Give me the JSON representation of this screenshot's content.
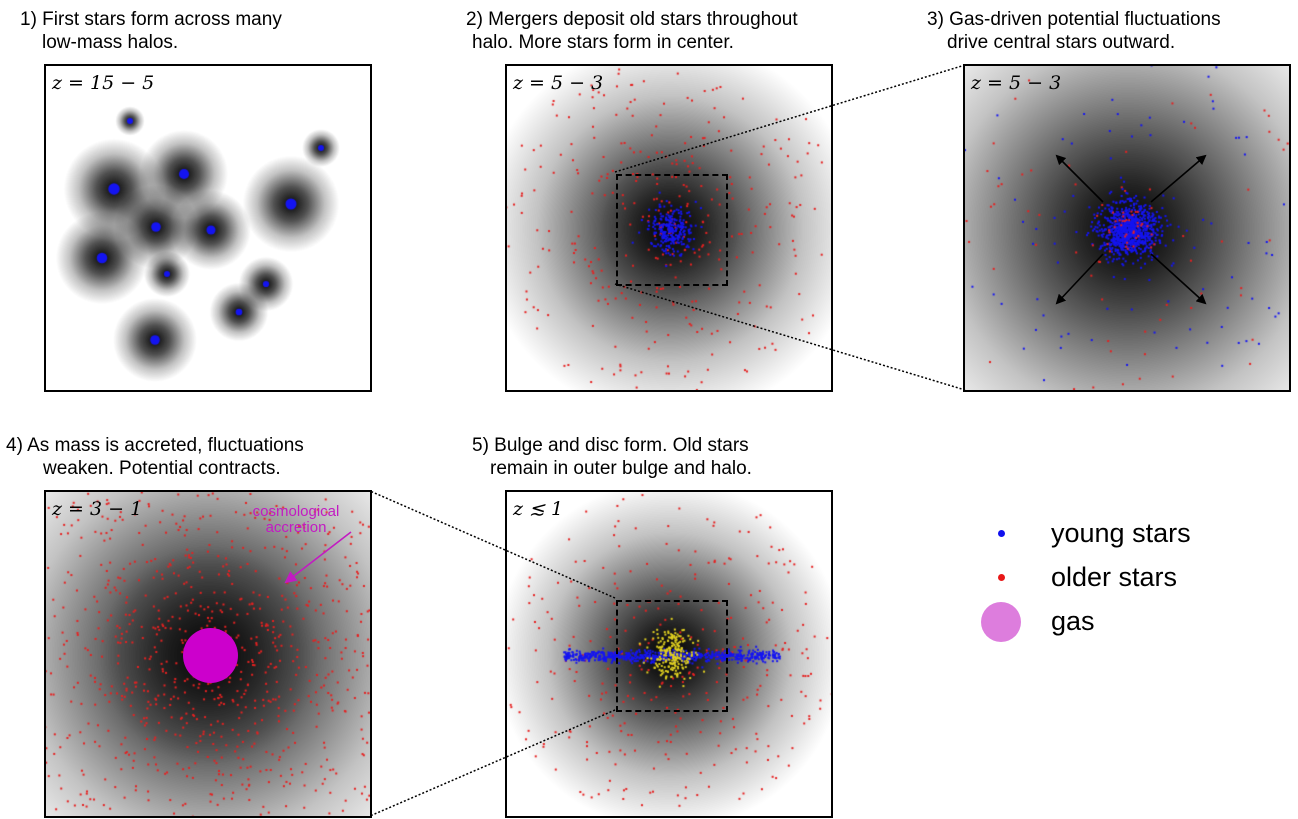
{
  "panels": [
    {
      "id": "panel1",
      "caption": [
        "1) First stars form across many",
        "low-mass halos."
      ],
      "redshift": "z = 15 − 5"
    },
    {
      "id": "panel2",
      "caption": [
        "2) Mergers deposit old stars throughout",
        "halo. More stars form in center."
      ],
      "redshift": "z = 5 − 3"
    },
    {
      "id": "panel3",
      "caption": [
        "3) Gas-driven potential fluctuations",
        "drive central stars outward."
      ],
      "redshift": "z = 5 − 3"
    },
    {
      "id": "panel4",
      "caption": [
        "4) As mass is accreted, fluctuations",
        "weaken. Potential contracts."
      ],
      "redshift": "z = 3 − 1",
      "annotation": [
        "cosmological",
        "accretion"
      ]
    },
    {
      "id": "panel5",
      "caption": [
        "5) Bulge and disc form. Old stars",
        "remain in outer bulge and halo."
      ],
      "redshift": "z ≲ 1"
    }
  ],
  "legend": [
    {
      "label": "young stars",
      "color": "#1010ee"
    },
    {
      "label": "older stars",
      "color": "#e81818"
    },
    {
      "label": "gas",
      "color": "#dd7ddd"
    }
  ],
  "colors": {
    "young_stars": "#1414f0",
    "older_stars": "#e52020",
    "bulge_stars": "#e0d020",
    "gas": "#cc00cc",
    "annotation": "#c21bc2"
  }
}
